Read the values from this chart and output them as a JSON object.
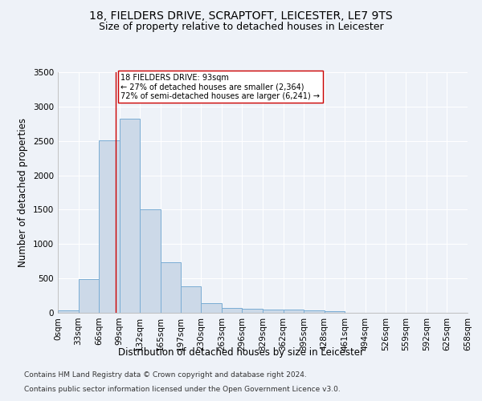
{
  "title_line1": "18, FIELDERS DRIVE, SCRAPTOFT, LEICESTER, LE7 9TS",
  "title_line2": "Size of property relative to detached houses in Leicester",
  "xlabel": "Distribution of detached houses by size in Leicester",
  "ylabel": "Number of detached properties",
  "bar_color": "#ccd9e8",
  "bar_edge_color": "#7aadd4",
  "annotation_line_color": "#cc0000",
  "annotation_text_line1": "18 FIELDERS DRIVE: 93sqm",
  "annotation_text_line2": "← 27% of detached houses are smaller (2,364)",
  "annotation_text_line3": "72% of semi-detached houses are larger (6,241) →",
  "property_size": 93,
  "bin_width": 33,
  "bin_starts": [
    0,
    33,
    66,
    99,
    132,
    165,
    197,
    230,
    263,
    296,
    329,
    362,
    395,
    428,
    461,
    494,
    526,
    559,
    592,
    625
  ],
  "bin_labels": [
    "0sqm",
    "33sqm",
    "66sqm",
    "99sqm",
    "132sqm",
    "165sqm",
    "197sqm",
    "230sqm",
    "263sqm",
    "296sqm",
    "329sqm",
    "362sqm",
    "395sqm",
    "428sqm",
    "461sqm",
    "494sqm",
    "526sqm",
    "559sqm",
    "592sqm",
    "625sqm",
    "658sqm"
  ],
  "counts": [
    30,
    490,
    2510,
    2820,
    1500,
    740,
    380,
    145,
    75,
    55,
    45,
    45,
    30,
    20,
    0,
    0,
    0,
    0,
    0,
    0
  ],
  "ylim": [
    0,
    3500
  ],
  "yticks": [
    0,
    500,
    1000,
    1500,
    2000,
    2500,
    3000,
    3500
  ],
  "footer_line1": "Contains HM Land Registry data © Crown copyright and database right 2024.",
  "footer_line2": "Contains public sector information licensed under the Open Government Licence v3.0.",
  "background_color": "#eef2f8",
  "grid_color": "#ffffff",
  "title_fontsize": 10,
  "subtitle_fontsize": 9,
  "axis_label_fontsize": 8.5,
  "tick_fontsize": 7.5,
  "footer_fontsize": 6.5
}
